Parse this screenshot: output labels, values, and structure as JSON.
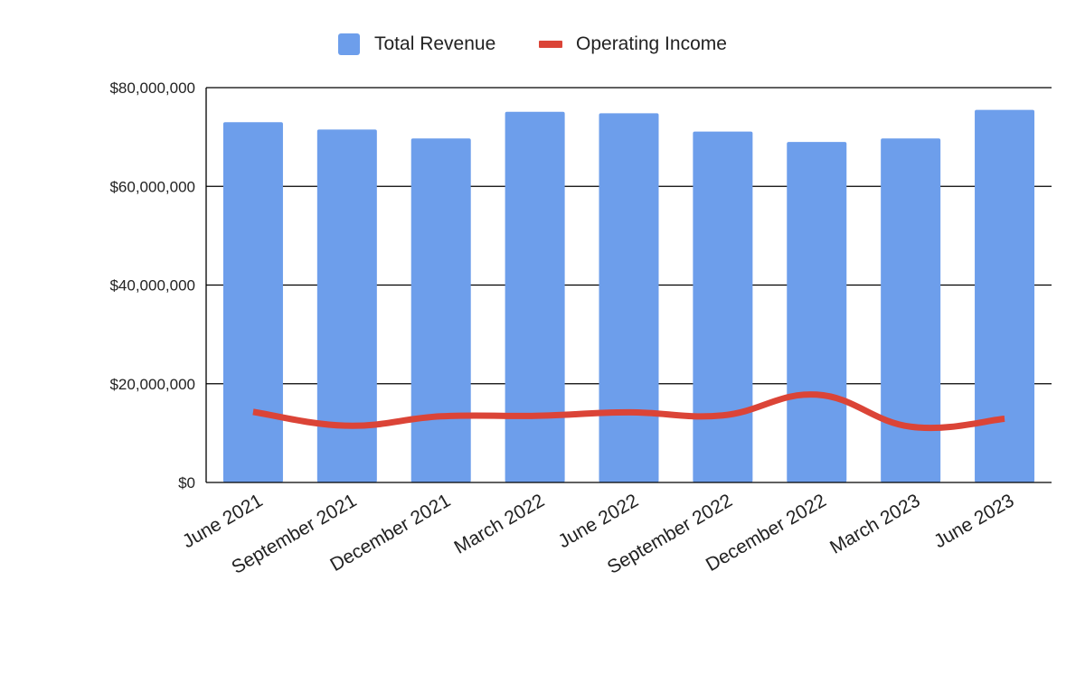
{
  "chart_data": {
    "type": "bar",
    "title": "",
    "xlabel": "",
    "ylabel": "",
    "categories": [
      "June 2021",
      "September 2021",
      "December 2021",
      "March 2022",
      "June 2022",
      "September 2022",
      "December 2022",
      "March 2023",
      "June 2023"
    ],
    "ylim": [
      0,
      80000000
    ],
    "yticks": [
      0,
      20000000,
      40000000,
      60000000,
      80000000
    ],
    "ytick_labels": [
      "$0",
      "$20,000,000",
      "$40,000,000",
      "$60,000,000",
      "$80,000,000"
    ],
    "grid": true,
    "legend_position": "top-center",
    "series": [
      {
        "name": "Total Revenue",
        "type": "bar",
        "color": "#6d9eeb",
        "values": [
          73000000,
          71500000,
          69700000,
          75100000,
          74800000,
          71100000,
          69000000,
          69700000,
          75500000
        ]
      },
      {
        "name": "Operating Income",
        "type": "line",
        "color": "#db4437",
        "values": [
          14300000,
          11500000,
          13400000,
          13500000,
          14200000,
          13600000,
          17800000,
          11300000,
          12900000
        ]
      }
    ]
  }
}
